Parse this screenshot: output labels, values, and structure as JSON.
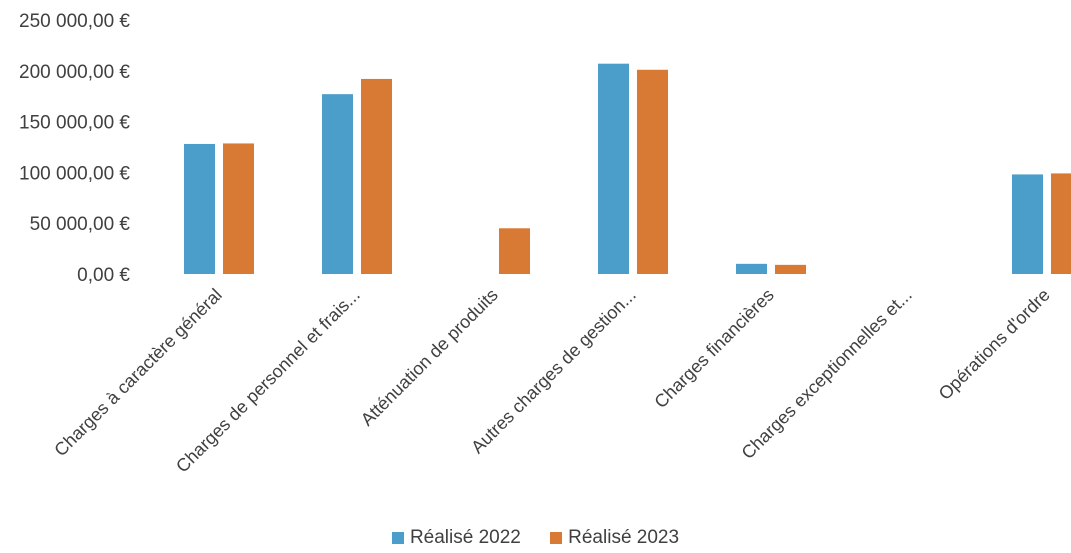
{
  "chart_data": {
    "type": "bar",
    "categories": [
      "Charges à caractère général",
      "Charges de personnel et frais...",
      "Atténuation de produits",
      "Autres charges de gestion...",
      "Charges financières",
      "Charges exceptionnelles et...",
      "Opérations d'ordre"
    ],
    "series": [
      {
        "name": "Réalisé 2022",
        "color": "#4a9ec9",
        "values": [
          128000,
          177000,
          0,
          207000,
          10000,
          0,
          98000
        ]
      },
      {
        "name": "Réalisé 2023",
        "color": "#d97a34",
        "values": [
          128500,
          192000,
          45000,
          201000,
          9000,
          0,
          99000
        ]
      }
    ],
    "ylim": [
      0,
      250000
    ],
    "ytick_values": [
      0,
      50000,
      100000,
      150000,
      200000,
      250000
    ],
    "ytick_labels": [
      "0,00 €",
      "50 000,00 €",
      "100 000,00 €",
      "150 000,00 €",
      "200 000,00 €",
      "250 000,00 €"
    ],
    "grid": false,
    "legend_position": "bottom"
  }
}
